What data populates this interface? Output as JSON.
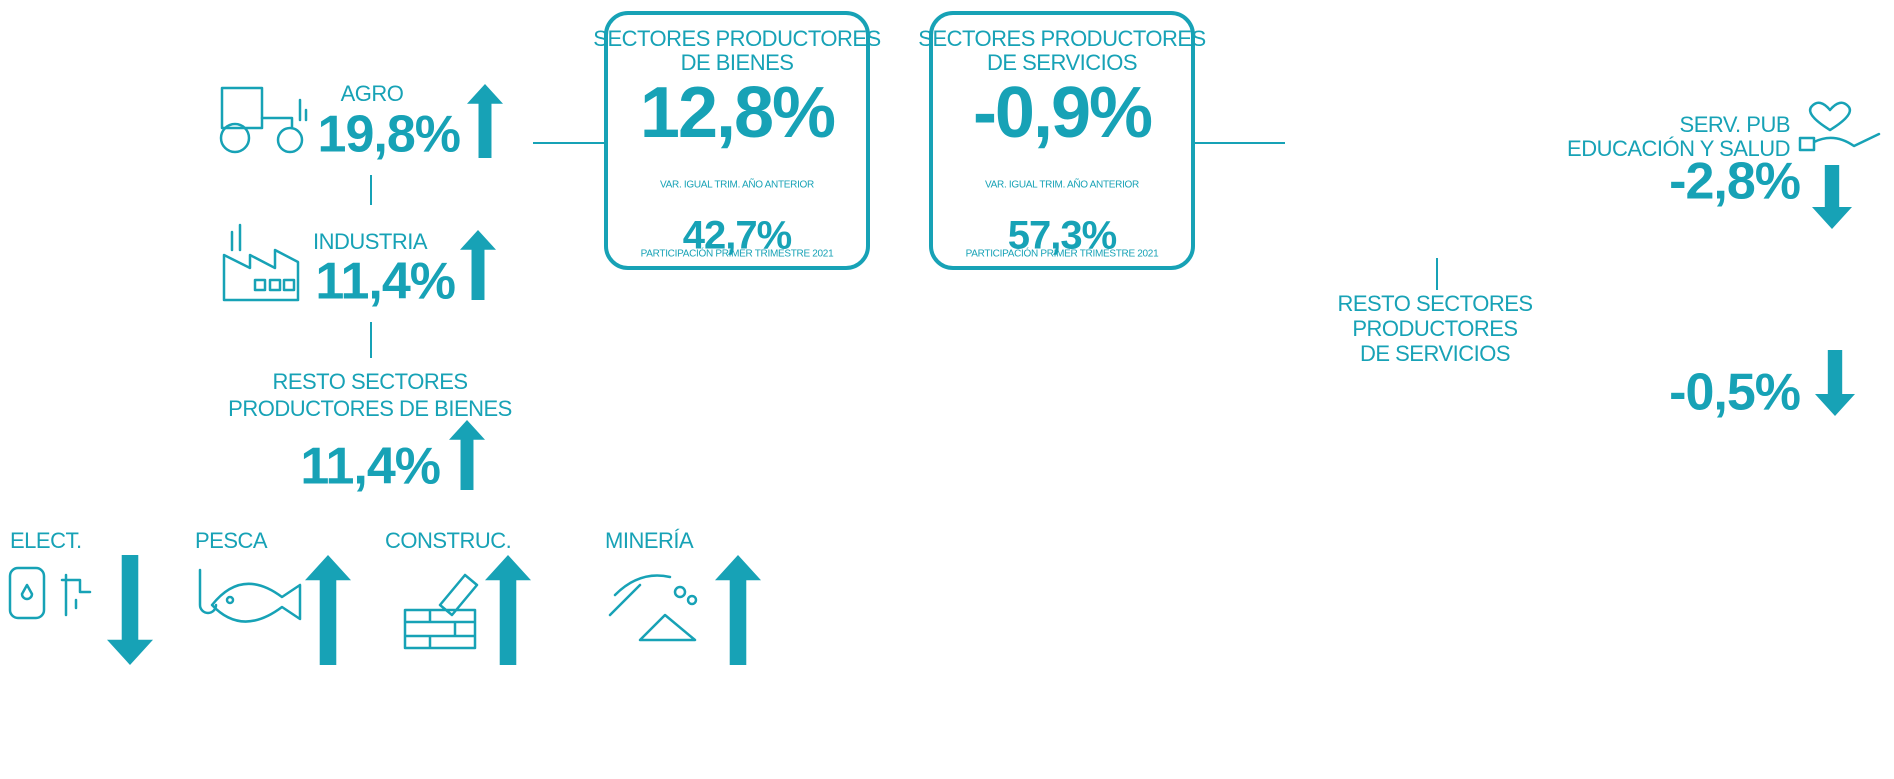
{
  "boxes": [
    {
      "title": [
        "SECTORES PRODUCTORES",
        "DE BIENES"
      ],
      "value": "12,8%",
      "value_note": "VAR. IGUAL TRIM. AÑO ANTERIOR",
      "share": "42,7%",
      "share_note": "PARTICIPACIÓN PRIMER TRIMESTRE 2021"
    },
    {
      "title": [
        "SECTORES PRODUCTORES",
        "DE SERVICIOS"
      ],
      "value": "-0,9%",
      "value_note": "VAR. IGUAL TRIM. AÑO ANTERIOR",
      "share": "57,3%",
      "share_note": "PARTICIPACIÓN PRIMER TRIMESTRE 2021"
    }
  ],
  "goods": [
    {
      "label": [
        "AGRO"
      ],
      "value": "19,8%",
      "trend": "up"
    },
    {
      "label": [
        "INDUSTRIA"
      ],
      "value": "11,4%",
      "trend": "up"
    },
    {
      "label": [
        "RESTO SECTORES",
        "PRODUCTORES DE BIENES"
      ],
      "value": "11,4%",
      "trend": "up"
    }
  ],
  "subsectors": [
    {
      "label": "ELECT.",
      "trend": "down"
    },
    {
      "label": "PESCA",
      "trend": "up"
    },
    {
      "label": "CONSTRUC.",
      "trend": "up"
    },
    {
      "label": "MINERÍA",
      "trend": "up"
    }
  ],
  "services": [
    {
      "label": [
        "SERV. PUB",
        "EDUCACIÓN Y SALUD"
      ],
      "value": "-2,8%",
      "trend": "down"
    },
    {
      "label": [
        "RESTO SECTORES",
        "PRODUCTORES",
        "DE SERVICIOS"
      ],
      "value": "-0,5%",
      "trend": "down"
    }
  ]
}
